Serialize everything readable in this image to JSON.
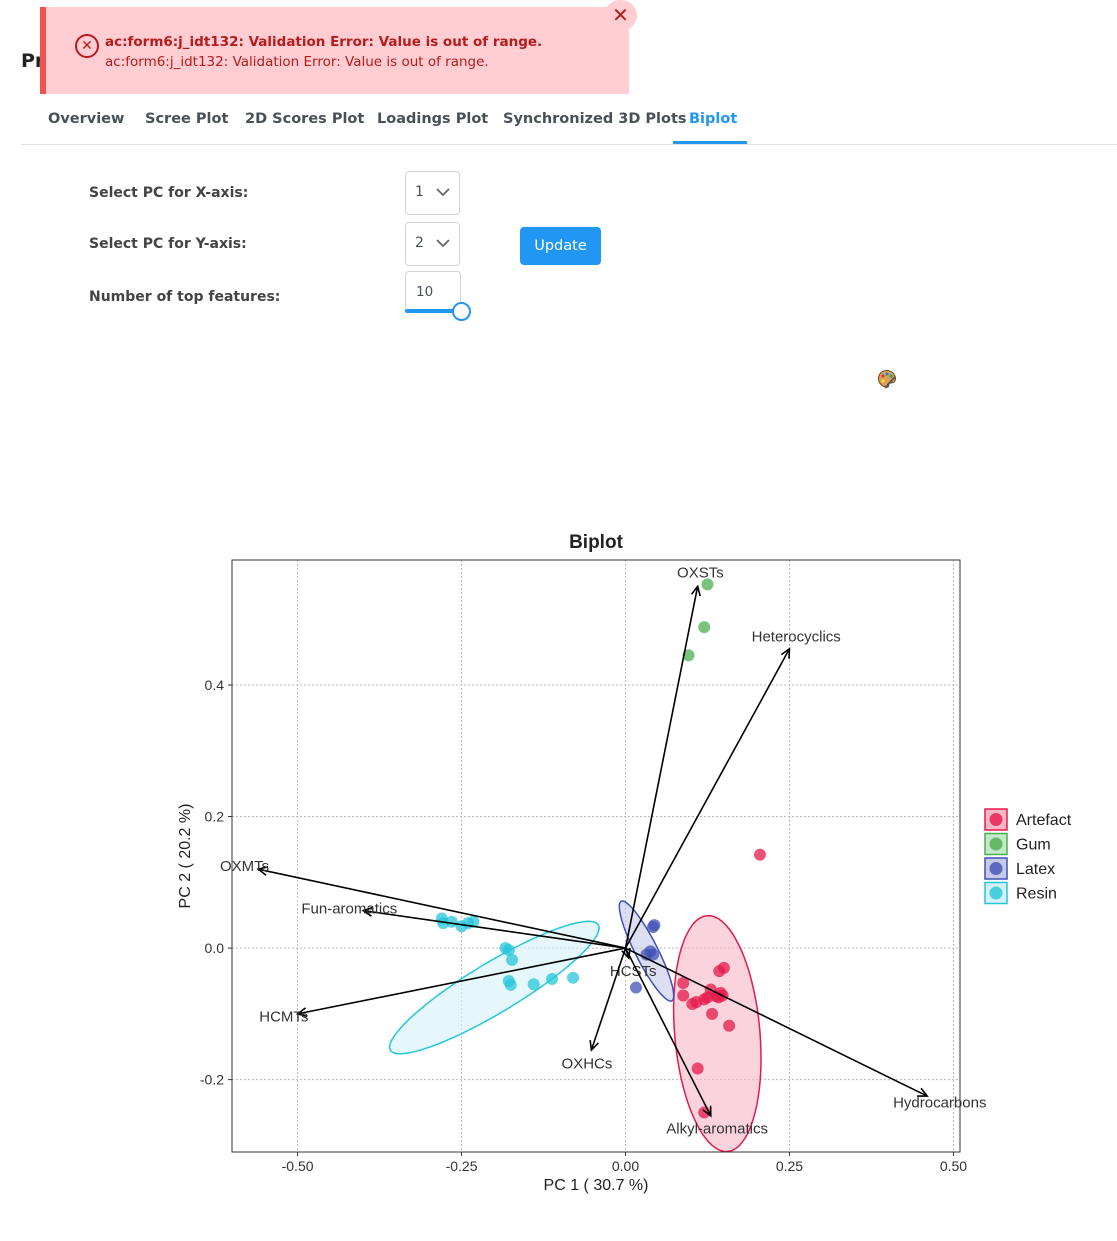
{
  "page": {
    "title_fragment": "Pr"
  },
  "error": {
    "icon": "error-circle-x-icon",
    "strong": "ac:form6:j_idt132: Validation Error: Value is out of range.",
    "detail": "ac:form6:j_idt132: Validation Error: Value is out of range.",
    "close_icon": "close-icon",
    "color": "#b71c1c"
  },
  "tabs": [
    {
      "label": "Overview",
      "active": false
    },
    {
      "label": "Scree Plot",
      "active": false
    },
    {
      "label": "2D Scores Plot",
      "active": false
    },
    {
      "label": "Loadings Plot",
      "active": false
    },
    {
      "label": "Synchronized 3D Plots",
      "active": false
    },
    {
      "label": "Biplot",
      "active": true
    }
  ],
  "form": {
    "x_axis_label": "Select PC for X-axis:",
    "x_axis_value": "1",
    "y_axis_label": "Select PC for Y-axis:",
    "y_axis_value": "2",
    "top_features_label": "Number of top features:",
    "top_features_value": "10",
    "update_label": "Update",
    "palette_icon": "palette-icon",
    "accent": "#2196f3"
  },
  "chart_data": {
    "type": "scatter",
    "title": "Biplot",
    "xlabel": "PC 1 ( 30.7 %)",
    "ylabel": "PC 2 ( 20.2 %)",
    "xlim": [
      -0.6,
      0.51
    ],
    "ylim": [
      -0.31,
      0.59
    ],
    "x_ticks": [
      -0.5,
      -0.25,
      0.0,
      0.25,
      0.5
    ],
    "x_tick_labels": [
      "-0.50",
      "-0.25",
      "0.00",
      "0.25",
      "0.50"
    ],
    "y_ticks": [
      -0.2,
      0.0,
      0.2,
      0.4
    ],
    "y_tick_labels": [
      "-0.2",
      "0.0",
      "0.2",
      "0.4"
    ],
    "grid": true,
    "legend_position": "right",
    "series": [
      {
        "name": "Artefact",
        "color": "#e6194b",
        "fill": "#f7b6c6",
        "ellipse": {
          "center": [
            0.14,
            -0.13
          ],
          "rx": 0.18,
          "ry": 0.065,
          "angle_deg": 95
        },
        "points": [
          [
            0.205,
            0.142
          ],
          [
            0.15,
            -0.03
          ],
          [
            0.143,
            -0.035
          ],
          [
            0.088,
            -0.053
          ],
          [
            0.13,
            -0.063
          ],
          [
            0.145,
            -0.068
          ],
          [
            0.148,
            -0.072
          ],
          [
            0.088,
            -0.072
          ],
          [
            0.125,
            -0.075
          ],
          [
            0.138,
            -0.073
          ],
          [
            0.142,
            -0.075
          ],
          [
            0.12,
            -0.078
          ],
          [
            0.108,
            -0.082
          ],
          [
            0.102,
            -0.085
          ],
          [
            0.132,
            -0.1
          ],
          [
            0.158,
            -0.118
          ],
          [
            0.11,
            -0.183
          ],
          [
            0.12,
            -0.25
          ]
        ]
      },
      {
        "name": "Gum",
        "color": "#4caf50",
        "fill": "#c8e6c9",
        "points": [
          [
            0.125,
            0.553
          ],
          [
            0.12,
            0.488
          ],
          [
            0.096,
            0.445
          ]
        ]
      },
      {
        "name": "Latex",
        "color": "#3f51b5",
        "fill": "#c5cae9",
        "ellipse": {
          "center": [
            0.032,
            -0.0045
          ],
          "rx": 0.085,
          "ry": 0.017,
          "angle_deg": 117
        },
        "points": [
          [
            0.044,
            0.035
          ],
          [
            0.042,
            0.032
          ],
          [
            0.038,
            -0.005
          ],
          [
            0.032,
            -0.01
          ],
          [
            0.016,
            -0.06
          ],
          [
            0.042,
            -0.01
          ]
        ]
      },
      {
        "name": "Resin",
        "color": "#26c6da",
        "fill": "#d4f1f7",
        "ellipse": {
          "center": [
            -0.2,
            -0.06
          ],
          "rx": 0.185,
          "ry": 0.038,
          "angle_deg": 31
        },
        "points": [
          [
            -0.28,
            0.045
          ],
          [
            -0.265,
            0.04
          ],
          [
            -0.278,
            0.038
          ],
          [
            -0.24,
            0.038
          ],
          [
            -0.25,
            0.033
          ],
          [
            -0.232,
            0.04
          ],
          [
            -0.183,
            0.0
          ],
          [
            -0.178,
            -0.003
          ],
          [
            -0.173,
            -0.018
          ],
          [
            -0.178,
            -0.05
          ],
          [
            -0.175,
            -0.056
          ],
          [
            -0.14,
            -0.055
          ],
          [
            -0.112,
            -0.047
          ],
          [
            -0.08,
            -0.045
          ]
        ]
      }
    ],
    "loadings": [
      {
        "label": "OXSTs",
        "x": 0.11,
        "y": 0.55
      },
      {
        "label": "Heterocyclics",
        "x": 0.25,
        "y": 0.455
      },
      {
        "label": "OXMTs",
        "x": -0.56,
        "y": 0.12
      },
      {
        "label": "Fun-aromatics",
        "x": -0.4,
        "y": 0.057
      },
      {
        "label": "HCMTs",
        "x": -0.5,
        "y": -0.1
      },
      {
        "label": "HCSTs",
        "x": 0.005,
        "y": -0.015
      },
      {
        "label": "OXHCs",
        "x": -0.052,
        "y": -0.155
      },
      {
        "label": "Alkyl-aromatics",
        "x": 0.13,
        "y": -0.255
      },
      {
        "label": "Hydrocarbons",
        "x": 0.46,
        "y": -0.225
      }
    ]
  }
}
